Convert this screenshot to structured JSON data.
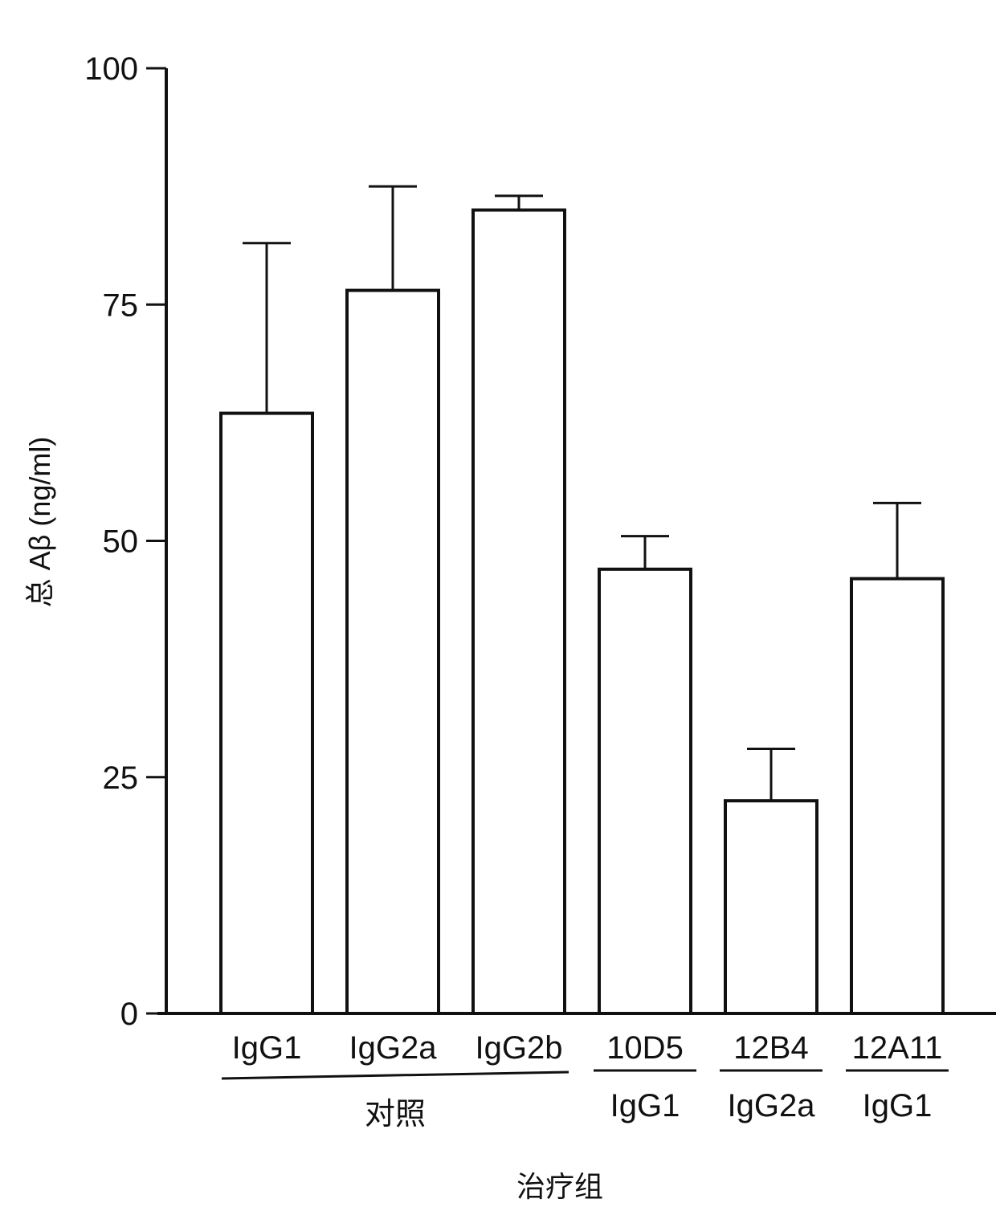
{
  "chart_data": {
    "type": "bar",
    "title": "",
    "ylabel": "总 Aβ (ng/ml)",
    "xlabel": "治疗组",
    "ylim": [
      0,
      100
    ],
    "yticks": [
      0,
      25,
      50,
      75,
      100
    ],
    "ytick_labels": [
      "0",
      "25",
      "50",
      "75",
      "100"
    ],
    "grid": false,
    "legend": "none",
    "categories": [
      "IgG1",
      "IgG2a",
      "IgG2b",
      "10D5",
      "12B4",
      "12A11"
    ],
    "values": [
      63.5,
      76.5,
      85,
      47,
      22.5,
      46
    ],
    "errors": [
      18,
      11,
      1.5,
      3.5,
      5.5,
      8
    ],
    "sublabels": [
      "",
      "",
      "",
      "IgG1",
      "IgG2a",
      "IgG1"
    ],
    "groups": [
      {
        "label": "对照",
        "categories": [
          "IgG1",
          "IgG2a",
          "IgG2b"
        ]
      }
    ],
    "colors": {
      "bar_fill": "#ffffff",
      "stroke": "#111111"
    }
  }
}
